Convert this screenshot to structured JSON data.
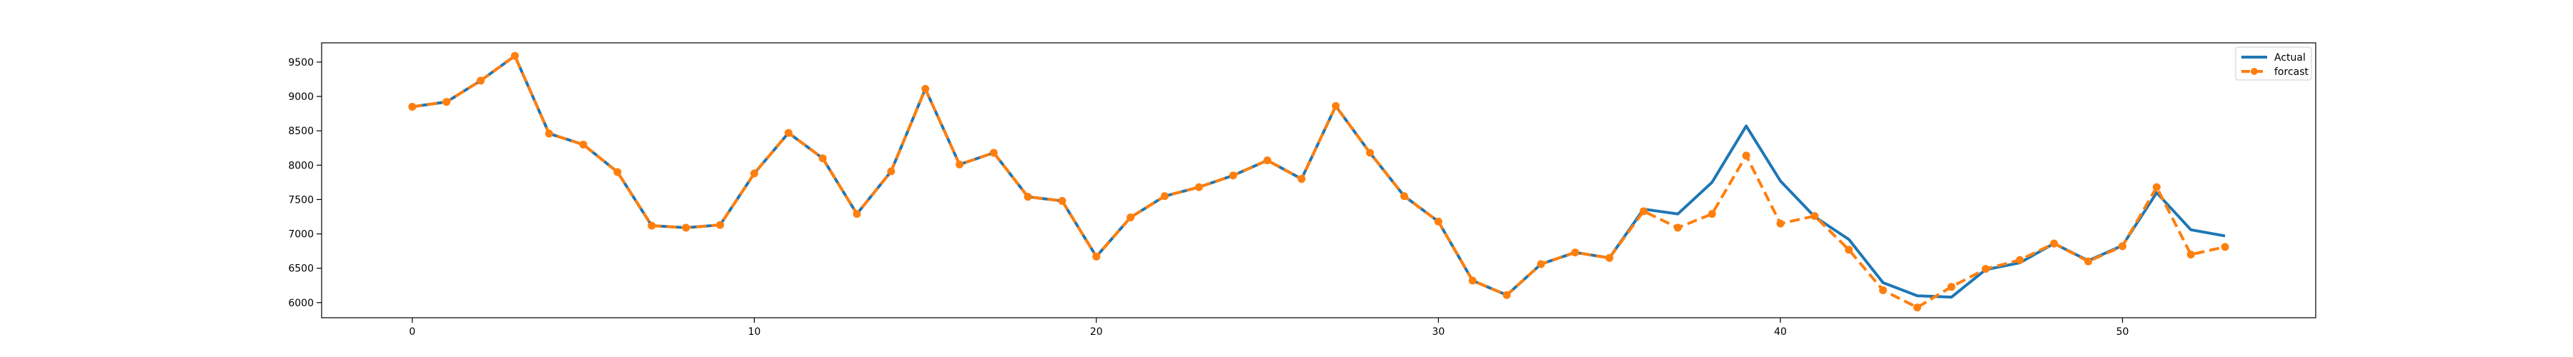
{
  "chart_data": {
    "type": "line",
    "title": "",
    "xlabel": "",
    "ylabel": "",
    "xlim": [
      -2.65,
      55.65
    ],
    "ylim": [
      5780,
      9780
    ],
    "xticks": [
      0,
      10,
      20,
      30,
      40,
      50
    ],
    "yticks": [
      6000,
      6500,
      7000,
      7500,
      8000,
      8500,
      9000,
      9500
    ],
    "grid": false,
    "legend_position": "top-right",
    "series": [
      {
        "name": "Actual",
        "color": "#1f77b4",
        "style": "solid",
        "x": [
          0,
          1,
          2,
          3,
          4,
          5,
          6,
          7,
          8,
          9,
          10,
          11,
          12,
          13,
          14,
          15,
          16,
          17,
          18,
          19,
          20,
          21,
          22,
          23,
          24,
          25,
          26,
          27,
          28,
          29,
          30,
          31,
          32,
          33,
          34,
          35,
          36,
          37,
          38,
          39,
          40,
          41,
          42,
          43,
          44,
          45,
          46,
          47,
          48,
          49,
          50,
          51,
          52,
          53
        ],
        "values": [
          8850,
          8920,
          9230,
          9590,
          8460,
          8300,
          7900,
          7120,
          7090,
          7130,
          7880,
          8470,
          8100,
          7290,
          7910,
          9110,
          8010,
          8180,
          7540,
          7480,
          6670,
          7240,
          7550,
          7680,
          7850,
          8070,
          7800,
          8860,
          8180,
          7550,
          7180,
          6320,
          6110,
          6560,
          6730,
          6650,
          7360,
          7290,
          7750,
          8570,
          7770,
          7250,
          6920,
          6290,
          6100,
          6080,
          6480,
          6580,
          6860,
          6610,
          6830,
          7600,
          7060,
          6970
        ]
      },
      {
        "name": "forcast",
        "color": "#ff7f0e",
        "style": "dashed",
        "marker": "circle",
        "x": [
          0,
          1,
          2,
          3,
          4,
          5,
          6,
          7,
          8,
          9,
          10,
          11,
          12,
          13,
          14,
          15,
          16,
          17,
          18,
          19,
          20,
          21,
          22,
          23,
          24,
          25,
          26,
          27,
          28,
          29,
          30,
          31,
          32,
          33,
          34,
          35,
          36,
          37,
          38,
          39,
          40,
          41,
          42,
          43,
          44,
          45,
          46,
          47,
          48,
          49,
          50,
          51,
          52,
          53
        ],
        "values": [
          8850,
          8920,
          9230,
          9590,
          8460,
          8300,
          7900,
          7120,
          7090,
          7130,
          7880,
          8470,
          8100,
          7290,
          7910,
          9110,
          8010,
          8180,
          7540,
          7480,
          6670,
          7240,
          7550,
          7680,
          7850,
          8070,
          7800,
          8860,
          8180,
          7550,
          7180,
          6320,
          6110,
          6560,
          6730,
          6650,
          7330,
          7090,
          7290,
          8140,
          7150,
          7260,
          6770,
          6180,
          5930,
          6230,
          6490,
          6620,
          6860,
          6600,
          6820,
          7680,
          6700,
          6810
        ]
      }
    ]
  }
}
